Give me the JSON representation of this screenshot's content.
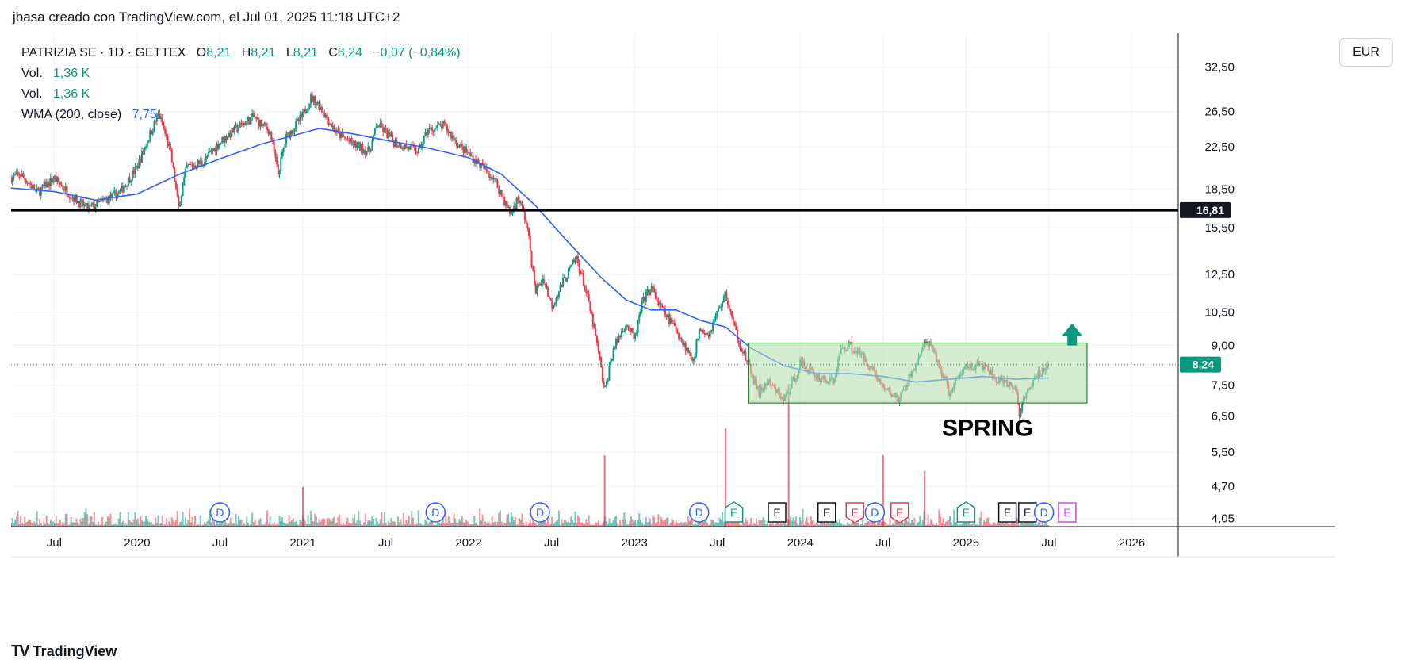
{
  "header": {
    "note": "jbasa creado con TradingView.com, el Jul 01, 2025 11:18 UTC+2"
  },
  "legend": {
    "symbol": "PATRIZIA SE · 1D · GETTEX",
    "o_key": "O",
    "o": "8,21",
    "h_key": "H",
    "h": "8,21",
    "l_key": "L",
    "l": "8,21",
    "c_key": "C",
    "c": "8,24",
    "change": "−0,07 (−0,84%)",
    "vol1_label": "Vol.",
    "vol1": "1,36 K",
    "vol2_label": "Vol.",
    "vol2": "1,36 K",
    "wma_label": "WMA (200, close)",
    "wma": "7,75"
  },
  "currency": "EUR",
  "footer": {
    "brand": "TradingView",
    "mark": "TV"
  },
  "colors": {
    "up": "#089981",
    "down": "#f23645",
    "wma": "#2962ff",
    "box_fill": "#b7dfb0",
    "box_stroke": "#2e7d32",
    "level": "#000000",
    "arrow": "#089981"
  },
  "chart_data": {
    "type": "candlestick",
    "title": "PATRIZIA SE · 1D · GETTEX",
    "price_scale": "log",
    "ylim": [
      3.9,
      38
    ],
    "y_ticks": [
      "32,50",
      "26,50",
      "22,50",
      "18,50",
      "15,50",
      "12,50",
      "10,50",
      "9,00",
      "7,50",
      "6,50",
      "5,50",
      "4,70",
      "4,05"
    ],
    "y_tick_values": [
      32.5,
      26.5,
      22.5,
      18.5,
      15.5,
      12.5,
      10.5,
      9.0,
      7.5,
      6.5,
      5.5,
      4.7,
      4.05
    ],
    "x_ticks": [
      "Jul",
      "2020",
      "Jul",
      "2021",
      "Jul",
      "2022",
      "Jul",
      "2023",
      "Jul",
      "2024",
      "Jul",
      "2025",
      "Jul",
      "2026"
    ],
    "x_tick_times": [
      2019.5,
      2020.0,
      2020.5,
      2021.0,
      2021.5,
      2022.0,
      2022.5,
      2023.0,
      2023.5,
      2024.0,
      2024.5,
      2025.0,
      2025.5,
      2026.0
    ],
    "xlim": [
      2019.24,
      2026.28
    ],
    "price_path": [
      [
        2019.24,
        19.5
      ],
      [
        2019.3,
        19.8
      ],
      [
        2019.4,
        18.2
      ],
      [
        2019.5,
        19.5
      ],
      [
        2019.6,
        18.0
      ],
      [
        2019.7,
        16.9
      ],
      [
        2019.8,
        17.5
      ],
      [
        2019.9,
        18.3
      ],
      [
        2020.0,
        20.5
      ],
      [
        2020.07,
        23.5
      ],
      [
        2020.13,
        26.2
      ],
      [
        2020.2,
        22.0
      ],
      [
        2020.25,
        16.9
      ],
      [
        2020.3,
        20.5
      ],
      [
        2020.4,
        21.0
      ],
      [
        2020.5,
        23.0
      ],
      [
        2020.6,
        24.5
      ],
      [
        2020.7,
        25.8
      ],
      [
        2020.8,
        24.2
      ],
      [
        2020.85,
        19.8
      ],
      [
        2020.9,
        23.5
      ],
      [
        2021.0,
        26.0
      ],
      [
        2021.05,
        28.3
      ],
      [
        2021.1,
        27.2
      ],
      [
        2021.2,
        24.0
      ],
      [
        2021.3,
        22.8
      ],
      [
        2021.4,
        22.0
      ],
      [
        2021.45,
        25.0
      ],
      [
        2021.55,
        23.0
      ],
      [
        2021.7,
        22.0
      ],
      [
        2021.75,
        24.3
      ],
      [
        2021.85,
        24.8
      ],
      [
        2021.95,
        22.5
      ],
      [
        2022.05,
        21.0
      ],
      [
        2022.15,
        19.5
      ],
      [
        2022.25,
        16.5
      ],
      [
        2022.3,
        17.8
      ],
      [
        2022.35,
        15.8
      ],
      [
        2022.4,
        11.5
      ],
      [
        2022.45,
        12.3
      ],
      [
        2022.5,
        10.8
      ],
      [
        2022.6,
        12.6
      ],
      [
        2022.65,
        13.5
      ],
      [
        2022.7,
        11.8
      ],
      [
        2022.78,
        8.8
      ],
      [
        2022.82,
        7.2
      ],
      [
        2022.87,
        8.8
      ],
      [
        2022.95,
        10.0
      ],
      [
        2023.0,
        9.2
      ],
      [
        2023.05,
        11.0
      ],
      [
        2023.1,
        11.8
      ],
      [
        2023.15,
        10.8
      ],
      [
        2023.25,
        9.7
      ],
      [
        2023.35,
        8.4
      ],
      [
        2023.4,
        9.8
      ],
      [
        2023.45,
        9.5
      ],
      [
        2023.5,
        10.5
      ],
      [
        2023.55,
        11.4
      ],
      [
        2023.6,
        9.8
      ],
      [
        2023.65,
        8.8
      ],
      [
        2023.7,
        8.0
      ],
      [
        2023.75,
        7.2
      ],
      [
        2023.8,
        7.6
      ],
      [
        2023.9,
        7.0
      ],
      [
        2023.95,
        7.5
      ],
      [
        2024.0,
        8.3
      ],
      [
        2024.1,
        7.8
      ],
      [
        2024.2,
        7.6
      ],
      [
        2024.25,
        8.9
      ],
      [
        2024.3,
        9.0
      ],
      [
        2024.4,
        8.4
      ],
      [
        2024.5,
        7.4
      ],
      [
        2024.6,
        7.0
      ],
      [
        2024.7,
        8.3
      ],
      [
        2024.75,
        9.1
      ],
      [
        2024.8,
        8.8
      ],
      [
        2024.9,
        7.2
      ],
      [
        2025.0,
        8.2
      ],
      [
        2025.1,
        8.2
      ],
      [
        2025.2,
        7.6
      ],
      [
        2025.3,
        7.4
      ],
      [
        2025.32,
        6.6
      ],
      [
        2025.4,
        7.6
      ],
      [
        2025.5,
        8.3
      ],
      [
        2025.5,
        8.24
      ]
    ],
    "wma_path": [
      [
        2019.24,
        18.6
      ],
      [
        2019.5,
        18.3
      ],
      [
        2019.75,
        17.6
      ],
      [
        2020.0,
        18.1
      ],
      [
        2020.25,
        19.8
      ],
      [
        2020.5,
        21.3
      ],
      [
        2020.75,
        22.8
      ],
      [
        2021.0,
        24.0
      ],
      [
        2021.1,
        24.5
      ],
      [
        2021.3,
        23.9
      ],
      [
        2021.5,
        23.2
      ],
      [
        2021.75,
        22.4
      ],
      [
        2022.0,
        21.4
      ],
      [
        2022.2,
        19.8
      ],
      [
        2022.4,
        17.2
      ],
      [
        2022.6,
        14.5
      ],
      [
        2022.8,
        12.3
      ],
      [
        2022.95,
        11.1
      ],
      [
        2023.1,
        10.6
      ],
      [
        2023.25,
        10.6
      ],
      [
        2023.4,
        10.1
      ],
      [
        2023.55,
        9.8
      ],
      [
        2023.7,
        8.9
      ],
      [
        2023.9,
        8.2
      ],
      [
        2024.1,
        7.9
      ],
      [
        2024.3,
        7.9
      ],
      [
        2024.5,
        7.8
      ],
      [
        2024.7,
        7.6
      ],
      [
        2024.9,
        7.7
      ],
      [
        2025.1,
        7.8
      ],
      [
        2025.3,
        7.7
      ],
      [
        2025.5,
        7.75
      ]
    ],
    "volume_spikes": [
      [
        2023.55,
        0.62
      ],
      [
        2023.93,
        0.9
      ],
      [
        2022.82,
        0.45
      ],
      [
        2021.0,
        0.25
      ],
      [
        2024.5,
        0.45
      ],
      [
        2024.75,
        0.35
      ]
    ],
    "annotations": {
      "level": {
        "price": 16.81,
        "label": "16,81"
      },
      "last_price": {
        "price": 8.24,
        "label": "8,24"
      },
      "range_box": {
        "t0": 2023.69,
        "t1": 2025.73,
        "p_low": 6.9,
        "p_high": 9.1
      },
      "arrow": {
        "t": 2025.64,
        "p": 9.4
      },
      "text": "SPRING",
      "text_anchor": {
        "t": 2025.13,
        "p": 6.15
      }
    },
    "events": [
      {
        "t": 2020.5,
        "label": "D",
        "kind": "dividend"
      },
      {
        "t": 2021.8,
        "label": "D",
        "kind": "dividend"
      },
      {
        "t": 2022.43,
        "label": "D",
        "kind": "dividend"
      },
      {
        "t": 2023.39,
        "label": "D",
        "kind": "dividend"
      },
      {
        "t": 2023.6,
        "label": "E",
        "kind": "earnings-up"
      },
      {
        "t": 2023.86,
        "label": "E",
        "kind": "earnings"
      },
      {
        "t": 2024.16,
        "label": "E",
        "kind": "earnings"
      },
      {
        "t": 2024.33,
        "label": "E",
        "kind": "earnings-down"
      },
      {
        "t": 2024.45,
        "label": "D",
        "kind": "dividend"
      },
      {
        "t": 2024.6,
        "label": "E",
        "kind": "earnings-down"
      },
      {
        "t": 2025.0,
        "label": "E",
        "kind": "earnings-up"
      },
      {
        "t": 2025.25,
        "label": "E",
        "kind": "earnings"
      },
      {
        "t": 2025.37,
        "label": "E",
        "kind": "earnings"
      },
      {
        "t": 2025.47,
        "label": "D",
        "kind": "dividend"
      },
      {
        "t": 2025.61,
        "label": "E",
        "kind": "earnings-future"
      }
    ]
  }
}
